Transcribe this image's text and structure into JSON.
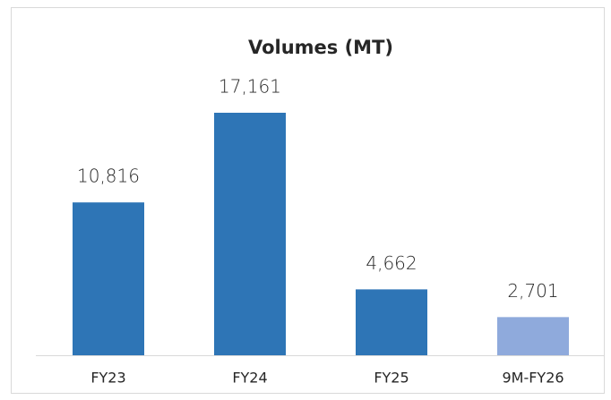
{
  "chart_data": {
    "type": "bar",
    "title": "Volumes (MT)",
    "categories": [
      "FY23",
      "FY24",
      "FY25",
      "9M-FY26"
    ],
    "values": [
      10816,
      17161,
      4662,
      2701
    ],
    "value_labels": [
      "10,816",
      "17,161",
      "4,662",
      "2,701"
    ],
    "colors": [
      "#2e75b6",
      "#2e75b6",
      "#2e75b6",
      "#8faadc"
    ]
  }
}
